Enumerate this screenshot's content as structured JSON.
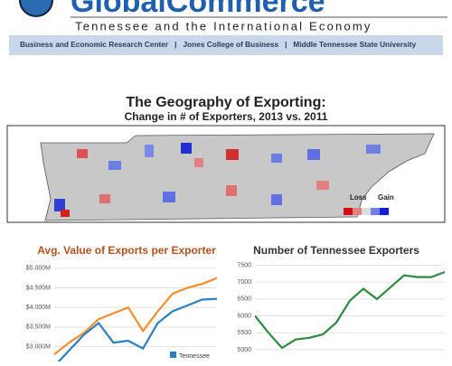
{
  "header": {
    "logo": "GlobalCommerce",
    "tagline": "Tennessee and the International Economy",
    "nav": [
      "Business and Economic Research Center",
      "|",
      "Jones College of Business",
      "|",
      "Middle Tennessee State University"
    ]
  },
  "map": {
    "title": "The Geography of Exporting:",
    "subtitle": "Change in # of Exporters, 2013 vs. 2011",
    "legend": [
      "Loss",
      "Gain"
    ]
  },
  "chart_data": [
    {
      "type": "line",
      "title": "Avg. Value of Exports per Exporter",
      "categories": [
        null,
        null,
        null,
        null,
        null,
        null,
        null,
        null,
        null,
        null,
        null,
        null
      ],
      "series": [
        {
          "color": "#f28e2b",
          "values": [
            2.8,
            3.1,
            3.35,
            3.7,
            3.85,
            4.0,
            3.4,
            3.9,
            4.35,
            4.5,
            4.6,
            4.75
          ]
        },
        {
          "name": "Tennessee",
          "color": "#2a7fc1",
          "values": [
            2.5,
            2.9,
            3.3,
            3.6,
            3.1,
            3.15,
            2.95,
            3.6,
            3.9,
            4.05,
            4.2,
            4.22
          ]
        }
      ],
      "ylim": [
        2.62,
        5.25
      ],
      "yticks": [
        {
          "value": 3,
          "label": "$3.000M"
        },
        {
          "value": 3.5,
          "label": "$3.500M"
        },
        {
          "value": 4,
          "label": "$4.000M"
        },
        {
          "value": 4.5,
          "label": "$4.500M"
        },
        {
          "value": 5,
          "label": "$5.000M"
        }
      ],
      "grid": true
    },
    {
      "type": "line",
      "title": "Number of Tennessee Exporters",
      "categories": [
        null,
        null,
        null,
        null,
        null,
        null,
        null,
        null,
        null,
        null,
        null,
        null,
        null,
        null,
        null
      ],
      "series": [
        {
          "color": "#2e8b3e",
          "values": [
            6000,
            5500,
            5050,
            5300,
            5350,
            5450,
            5800,
            6450,
            6800,
            6500,
            6850,
            7200,
            7150,
            7150,
            7300
          ]
        }
      ],
      "ylim": [
        4650,
        7700
      ],
      "yticks": [
        5000,
        5500,
        6000,
        6500,
        7000,
        7500
      ],
      "grid": true
    }
  ]
}
